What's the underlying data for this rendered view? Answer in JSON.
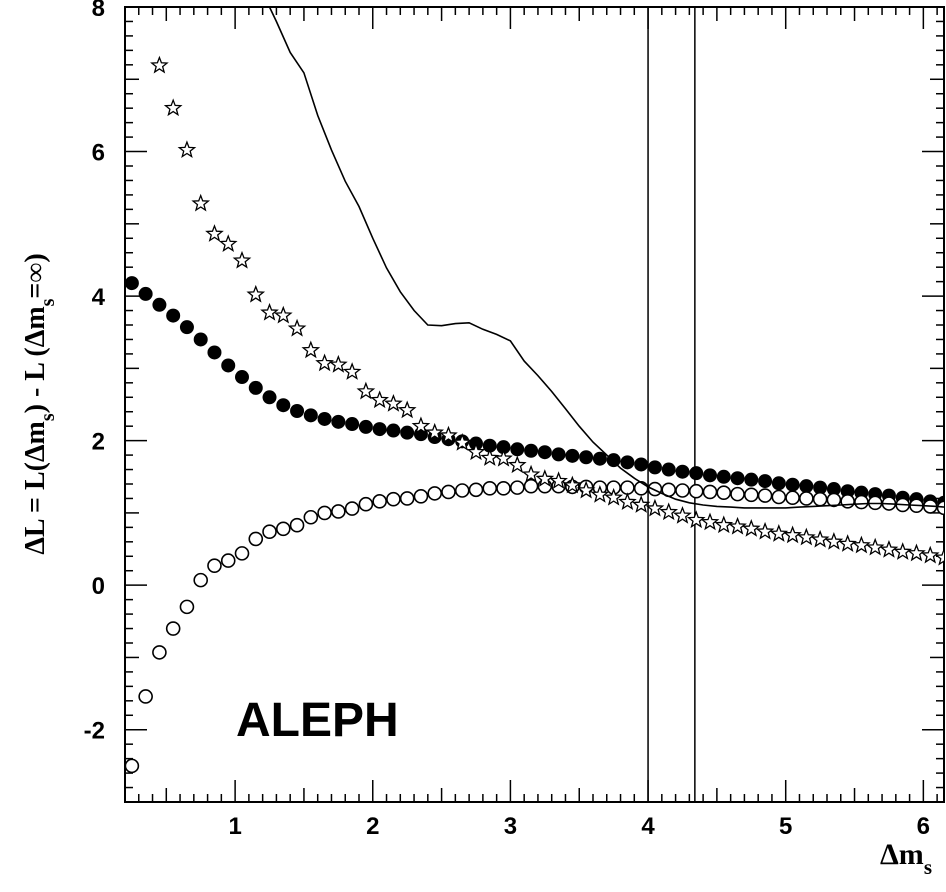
{
  "chart_data": {
    "type": "scatter",
    "title": "",
    "annotation": "ALEPH",
    "xlabel": {
      "main": "Δm",
      "sub": "s"
    },
    "ylabel": {
      "p1": "ΔL = L(Δm",
      "s1": "s",
      "p2": ")  - L (Δm",
      "s2": "s",
      "p3": "=∞)"
    },
    "xlim": [
      0.2,
      6.15
    ],
    "ylim": [
      -3.0,
      8.0
    ],
    "x_ticks": [
      1,
      2,
      3,
      4,
      5,
      6
    ],
    "x_tick_labels": [
      "1",
      "2",
      "3",
      "4",
      "5",
      "6"
    ],
    "y_ticks": [
      -2,
      0,
      2,
      4,
      6,
      8
    ],
    "y_tick_labels": [
      "-2",
      "0",
      "2",
      "4",
      "6",
      "8"
    ],
    "grid": false,
    "colors": {
      "ink": "#000000",
      "background": "#ffffff"
    },
    "vertical_lines": [
      4.0,
      4.34
    ],
    "series": [
      {
        "marker": "filled-circle",
        "x": [
          0.25,
          0.35,
          0.45,
          0.55,
          0.65,
          0.75,
          0.85,
          0.95,
          1.05,
          1.15,
          1.25,
          1.35,
          1.45,
          1.55,
          1.65,
          1.75,
          1.85,
          1.95,
          2.05,
          2.15,
          2.25,
          2.35,
          2.45,
          2.55,
          2.65,
          2.75,
          2.85,
          2.95,
          3.05,
          3.15,
          3.25,
          3.35,
          3.45,
          3.55,
          3.65,
          3.75,
          3.85,
          3.95,
          4.05,
          4.15,
          4.25,
          4.35,
          4.45,
          4.55,
          4.65,
          4.75,
          4.85,
          4.95,
          5.05,
          5.15,
          5.25,
          5.35,
          5.45,
          5.55,
          5.65,
          5.75,
          5.85,
          5.95,
          6.05,
          6.15
        ],
        "y": [
          4.18,
          4.03,
          3.88,
          3.73,
          3.57,
          3.4,
          3.22,
          3.04,
          2.88,
          2.73,
          2.6,
          2.49,
          2.41,
          2.35,
          2.3,
          2.26,
          2.23,
          2.19,
          2.16,
          2.14,
          2.11,
          2.09,
          2.05,
          2.02,
          1.99,
          1.96,
          1.93,
          1.91,
          1.88,
          1.86,
          1.84,
          1.81,
          1.79,
          1.77,
          1.75,
          1.73,
          1.7,
          1.67,
          1.63,
          1.6,
          1.57,
          1.55,
          1.52,
          1.5,
          1.48,
          1.46,
          1.44,
          1.41,
          1.39,
          1.37,
          1.35,
          1.33,
          1.3,
          1.28,
          1.26,
          1.24,
          1.21,
          1.19,
          1.16,
          1.14
        ]
      },
      {
        "marker": "open-circle",
        "x": [
          0.25,
          0.35,
          0.45,
          0.55,
          0.65,
          0.75,
          0.85,
          0.95,
          1.05,
          1.15,
          1.25,
          1.35,
          1.45,
          1.55,
          1.65,
          1.75,
          1.85,
          1.95,
          2.05,
          2.15,
          2.25,
          2.35,
          2.45,
          2.55,
          2.65,
          2.75,
          2.85,
          2.95,
          3.05,
          3.15,
          3.25,
          3.35,
          3.45,
          3.55,
          3.65,
          3.75,
          3.85,
          3.95,
          4.05,
          4.15,
          4.25,
          4.35,
          4.45,
          4.55,
          4.65,
          4.75,
          4.85,
          4.95,
          5.05,
          5.15,
          5.25,
          5.35,
          5.45,
          5.55,
          5.65,
          5.75,
          5.85,
          5.95,
          6.05,
          6.15
        ],
        "y": [
          -2.5,
          -1.54,
          -0.93,
          -0.6,
          -0.3,
          0.07,
          0.27,
          0.34,
          0.44,
          0.64,
          0.74,
          0.78,
          0.83,
          0.94,
          1.0,
          1.02,
          1.06,
          1.12,
          1.16,
          1.19,
          1.2,
          1.23,
          1.27,
          1.29,
          1.31,
          1.32,
          1.34,
          1.34,
          1.35,
          1.37,
          1.37,
          1.37,
          1.36,
          1.36,
          1.35,
          1.35,
          1.35,
          1.34,
          1.33,
          1.32,
          1.31,
          1.3,
          1.29,
          1.28,
          1.26,
          1.25,
          1.24,
          1.22,
          1.21,
          1.2,
          1.19,
          1.18,
          1.16,
          1.15,
          1.14,
          1.13,
          1.11,
          1.1,
          1.09,
          1.07
        ]
      },
      {
        "marker": "star",
        "x": [
          0.45,
          0.55,
          0.65,
          0.75,
          0.85,
          0.95,
          1.05,
          1.15,
          1.25,
          1.35,
          1.45,
          1.55,
          1.65,
          1.75,
          1.85,
          1.95,
          2.05,
          2.15,
          2.25,
          2.35,
          2.45,
          2.55,
          2.65,
          2.75,
          2.85,
          2.95,
          3.05,
          3.15,
          3.25,
          3.35,
          3.45,
          3.55,
          3.65,
          3.75,
          3.85,
          3.95,
          4.05,
          4.15,
          4.25,
          4.35,
          4.45,
          4.55,
          4.65,
          4.75,
          4.85,
          4.95,
          5.05,
          5.15,
          5.25,
          5.35,
          5.45,
          5.55,
          5.65,
          5.75,
          5.85,
          5.95,
          6.05,
          6.15
        ],
        "y": [
          7.19,
          6.6,
          6.02,
          5.28,
          4.86,
          4.72,
          4.49,
          4.02,
          3.77,
          3.73,
          3.55,
          3.25,
          3.07,
          3.05,
          2.95,
          2.68,
          2.56,
          2.51,
          2.42,
          2.2,
          2.11,
          2.07,
          1.97,
          1.84,
          1.76,
          1.75,
          1.66,
          1.53,
          1.47,
          1.44,
          1.38,
          1.31,
          1.25,
          1.21,
          1.15,
          1.11,
          1.06,
          1.01,
          0.96,
          0.9,
          0.87,
          0.83,
          0.81,
          0.78,
          0.74,
          0.71,
          0.69,
          0.66,
          0.63,
          0.6,
          0.57,
          0.55,
          0.52,
          0.49,
          0.46,
          0.44,
          0.41,
          0.38
        ]
      },
      {
        "marker": "line",
        "x": [
          1.25,
          1.3,
          1.4,
          1.5,
          1.6,
          1.7,
          1.8,
          1.9,
          2.0,
          2.1,
          2.2,
          2.3,
          2.4,
          2.5,
          2.6,
          2.7,
          2.8,
          2.9,
          3.0,
          3.1,
          3.2,
          3.3,
          3.4,
          3.5,
          3.6,
          3.7,
          3.8,
          3.9,
          4.0,
          4.1,
          4.2,
          4.3,
          4.4,
          4.5,
          4.6,
          4.7,
          4.8,
          4.9,
          5.0,
          5.1,
          5.2,
          5.3,
          5.4,
          5.5,
          5.6,
          5.7,
          5.8,
          5.9,
          6.0,
          6.1,
          6.15
        ],
        "y": [
          8.0,
          7.8,
          7.37,
          7.09,
          6.5,
          6.02,
          5.59,
          5.24,
          4.8,
          4.39,
          4.06,
          3.8,
          3.6,
          3.59,
          3.62,
          3.63,
          3.54,
          3.47,
          3.38,
          3.1,
          2.9,
          2.68,
          2.44,
          2.2,
          1.98,
          1.8,
          1.62,
          1.48,
          1.36,
          1.27,
          1.19,
          1.14,
          1.11,
          1.09,
          1.08,
          1.07,
          1.07,
          1.07,
          1.07,
          1.08,
          1.09,
          1.1,
          1.11,
          1.12,
          1.13,
          1.13,
          1.12,
          1.11,
          1.1,
          1.09,
          1.08
        ]
      }
    ]
  }
}
